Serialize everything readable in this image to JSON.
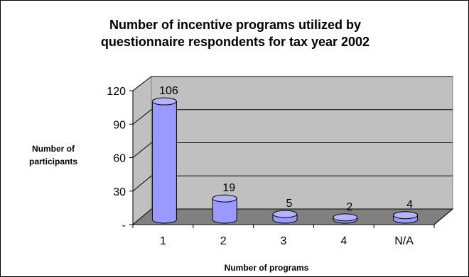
{
  "chart_data": {
    "type": "bar",
    "bar_style": "3d-cylinder",
    "title_lines": [
      "Number of incentive programs utilized by",
      "questionnaire respondents for tax year 2002"
    ],
    "xlabel": "Number of programs",
    "ylabel_lines": [
      "Number of",
      "participants"
    ],
    "categories": [
      "1",
      "2",
      "3",
      "4",
      "N/A"
    ],
    "series": [
      {
        "values": [
          106,
          19,
          5,
          2,
          4
        ]
      }
    ],
    "data_labels": [
      "106",
      "19",
      "5",
      "2",
      "4"
    ],
    "ylim": [
      0,
      120
    ],
    "yticks": [
      0,
      30,
      60,
      90,
      120
    ],
    "ytick_labels": [
      "-",
      "30",
      "60",
      "90",
      "120"
    ],
    "grid": true,
    "legend": "none",
    "colors": {
      "bar_fill": "#9999ff",
      "bar_top": "#b3b3ff",
      "bar_edge": "#000000",
      "wall": "#c0c0c0",
      "floor": "#808080",
      "gridline": "#000000"
    }
  }
}
